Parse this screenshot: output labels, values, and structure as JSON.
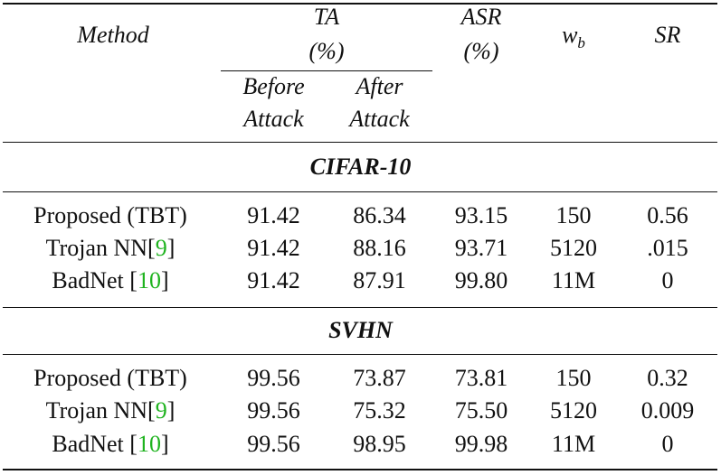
{
  "header": {
    "method": "Method",
    "ta": "TA",
    "ta_unit": "(%)",
    "before_1": "Before",
    "before_2": "Attack",
    "after_1": "After",
    "after_2": "Attack",
    "asr": "ASR",
    "asr_unit": "(%)",
    "wb_base": "w",
    "wb_sub": "b",
    "sr": "SR"
  },
  "sections": [
    {
      "title": "CIFAR-10",
      "rows": [
        {
          "method": "Proposed (TBT)",
          "cite": "",
          "before": "91.42",
          "after": "86.34",
          "asr": "93.15",
          "wb": "150",
          "sr": "0.56"
        },
        {
          "method": "Trojan NN[",
          "cite": "9",
          "close": "]",
          "before": "91.42",
          "after": "88.16",
          "asr": "93.71",
          "wb": "5120",
          "sr": ".015"
        },
        {
          "method": "BadNet [",
          "cite": "10",
          "close": "]",
          "before": "91.42",
          "after": "87.91",
          "asr": "99.80",
          "wb": "11M",
          "sr": "0"
        }
      ]
    },
    {
      "title": "SVHN",
      "rows": [
        {
          "method": "Proposed (TBT)",
          "cite": "",
          "before": "99.56",
          "after": "73.87",
          "asr": "73.81",
          "wb": "150",
          "sr": "0.32"
        },
        {
          "method": "Trojan NN[",
          "cite": "9",
          "close": "]",
          "before": "99.56",
          "after": "75.32",
          "asr": "75.50",
          "wb": "5120",
          "sr": "0.009"
        },
        {
          "method": "BadNet [",
          "cite": "10",
          "close": "]",
          "before": "99.56",
          "after": "98.95",
          "asr": "99.98",
          "wb": "11M",
          "sr": "0"
        }
      ]
    }
  ]
}
